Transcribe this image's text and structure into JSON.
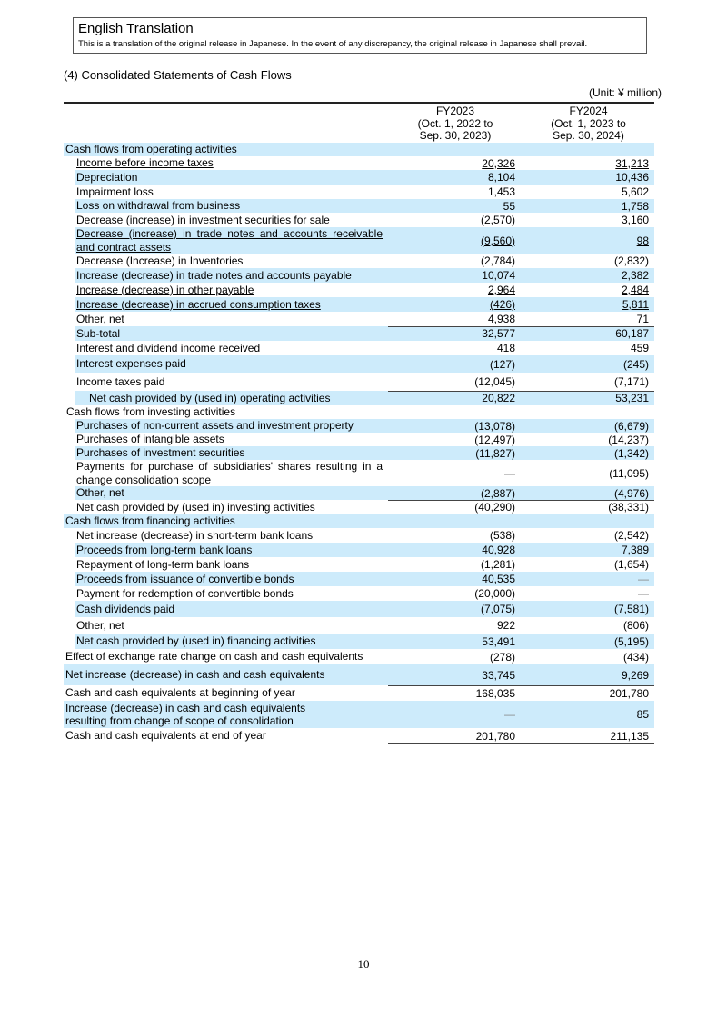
{
  "translation_box": {
    "title": "English Translation",
    "note": "This is a translation of the original release in Japanese. In the event of any discrepancy, the original release in Japanese shall prevail."
  },
  "section_title": "(4) Consolidated Statements of Cash Flows",
  "unit": "(Unit: ¥ million)",
  "columns": [
    {
      "l1": "FY2023",
      "l2": "(Oct. 1, 2022 to",
      "l3": "Sep. 30, 2023)"
    },
    {
      "l1": "FY2024",
      "l2": "(Oct. 1, 2023 to",
      "l3": "Sep. 30, 2024)"
    }
  ],
  "rows": [
    {
      "label": "Cash flows from operating activities",
      "v1": "",
      "v2": "",
      "lvl": 0,
      "h": 15,
      "sh": 1
    },
    {
      "label": "Income before income taxes",
      "v1": "20,326",
      "v2": "31,213",
      "lvl": 1,
      "h": 15,
      "u": 1
    },
    {
      "label": "Depreciation",
      "v1": "8,104",
      "v2": "10,436",
      "lvl": 1,
      "h": 16,
      "sh": 1
    },
    {
      "label": "Impairment loss",
      "v1": "1,453",
      "v2": "5,602",
      "lvl": 1,
      "h": 16
    },
    {
      "label": "Loss on withdrawal from business",
      "v1": "55",
      "v2": "1,758",
      "lvl": 1,
      "h": 15,
      "sh": 1
    },
    {
      "label": "Decrease (increase) in investment securities for sale",
      "v1": "(2,570)",
      "v2": "3,160",
      "lvl": 1,
      "h": 16
    },
    {
      "label": "Decrease (increase) in trade notes and accounts receivable and contract assets",
      "v1": "(9,560)",
      "v2": "98",
      "lvl": 1,
      "h": 29,
      "sh": 1,
      "u": 1
    },
    {
      "label": "Decrease (Increase) in Inventories",
      "v1": "(2,784)",
      "v2": "(2,832)",
      "lvl": 1,
      "h": 16
    },
    {
      "label": "Increase (decrease) in trade notes and accounts payable",
      "v1": "10,074",
      "v2": "2,382",
      "lvl": 1,
      "h": 16,
      "sh": 1
    },
    {
      "label": "Increase (decrease) in other payable",
      "v1": "2,964",
      "v2": "2,484",
      "lvl": 1,
      "h": 16,
      "u": 1
    },
    {
      "label": "Increase (decrease) in accrued consumption taxes",
      "v1": "(426)",
      "v2": "5,811",
      "lvl": 1,
      "h": 16,
      "sh": 1,
      "u": 1
    },
    {
      "label": "Other, net",
      "v1": "4,938",
      "v2": "71",
      "lvl": 1,
      "h": 16,
      "u": 1
    },
    {
      "label": "Sub-total",
      "v1": "32,577",
      "v2": "60,187",
      "lvl": 1,
      "h": 16,
      "sh": 1,
      "rule": 1
    },
    {
      "label": "Interest and dividend income received",
      "v1": "418",
      "v2": "459",
      "lvl": 1,
      "h": 16
    },
    {
      "label": "Interest expenses paid",
      "v1": "(127)",
      "v2": "(245)",
      "lvl": 1,
      "h": 19,
      "sh": 1
    },
    {
      "label": "Income taxes paid",
      "v1": "(12,045)",
      "v2": "(7,171)",
      "lvl": 1,
      "h": 20
    },
    {
      "label": "Net cash provided by (used in) operating activities",
      "v1": "20,822",
      "v2": "53,231",
      "lvl": 2,
      "h": 16,
      "sh": 1,
      "rule": 1
    },
    {
      "label": "Cash flows from investing activities",
      "v1": "",
      "v2": "",
      "lvl": 0.2,
      "h": 15
    },
    {
      "label": "Purchases of non-current assets and investment property",
      "v1": "(13,078)",
      "v2": "(6,679)",
      "lvl": 1,
      "h": 15,
      "sh": 1
    },
    {
      "label": "Purchases of intangible assets",
      "v1": "(12,497)",
      "v2": "(14,237)",
      "lvl": 1,
      "h": 15
    },
    {
      "label": "Purchases of investment securities",
      "v1": "(11,827)",
      "v2": "(1,342)",
      "lvl": 1,
      "h": 15,
      "sh": 1
    },
    {
      "label": "Payments for purchase of subsidiaries' shares resulting in a change consolidation scope",
      "v1": "—",
      "v2": "(11,095)",
      "lvl": 1,
      "h": 29
    },
    {
      "label": "Other, net",
      "v1": "(2,887)",
      "v2": "(4,976)",
      "lvl": 1,
      "h": 15,
      "sh": 1
    },
    {
      "label": "Net cash provided by (used in) investing activities",
      "v1": "(40,290)",
      "v2": "(38,331)",
      "lvl": 1,
      "h": 16,
      "rule": 1
    },
    {
      "label": "Cash flows from financing activities",
      "v1": "",
      "v2": "",
      "lvl": 0,
      "h": 15,
      "sh": 1
    },
    {
      "label": "Net increase (decrease) in short-term bank loans",
      "v1": "(538)",
      "v2": "(2,542)",
      "lvl": 1,
      "h": 16
    },
    {
      "label": "Proceeds from long-term bank loans",
      "v1": "40,928",
      "v2": "7,389",
      "lvl": 1,
      "h": 16,
      "sh": 1
    },
    {
      "label": "Repayment of long-term bank loans",
      "v1": "(1,281)",
      "v2": "(1,654)",
      "lvl": 1,
      "h": 16
    },
    {
      "label": "Proceeds from issuance of convertible bonds",
      "v1": "40,535",
      "v2": "—",
      "lvl": 1,
      "h": 16,
      "sh": 1
    },
    {
      "label": "Payment for redemption of convertible bonds",
      "v1": "(20,000)",
      "v2": "—",
      "lvl": 1,
      "h": 16
    },
    {
      "label": "Cash dividends paid",
      "v1": "(7,075)",
      "v2": "(7,581)",
      "lvl": 1,
      "h": 18,
      "sh": 1
    },
    {
      "label": "Other, net",
      "v1": "922",
      "v2": "(806)",
      "lvl": 1,
      "h": 18
    },
    {
      "label": "Net cash provided by (used in) financing activities",
      "v1": "53,491",
      "v2": "(5,195)",
      "lvl": 1,
      "h": 17,
      "sh": 1,
      "rule": 1
    },
    {
      "label": "Effect of exchange rate change on cash and cash equivalents",
      "v1": "(278)",
      "v2": "(434)",
      "lvl": 0,
      "h": 17
    },
    {
      "label": "Net increase (decrease) in cash and cash equivalents",
      "v1": "33,745",
      "v2": "9,269",
      "lvl": 0,
      "h": 23,
      "sh": 1
    },
    {
      "label": "Cash and cash equivalents at beginning of year",
      "v1": "168,035",
      "v2": "201,780",
      "lvl": 0,
      "h": 17,
      "rule": 1
    },
    {
      "label": "Increase (decrease) in cash and cash equivalents resulting from change of scope of consolidation",
      "v1": "—",
      "v2": "85",
      "lvl": 0,
      "h": 30,
      "sh": 1,
      "br": 1
    },
    {
      "label": "Cash and cash equivalents at end of year",
      "v1": "201,780",
      "v2": "211,135",
      "lvl": 0,
      "h": 17,
      "last": 1
    }
  ],
  "page_number": "10",
  "colors": {
    "row_shade": "#cdebfb"
  }
}
